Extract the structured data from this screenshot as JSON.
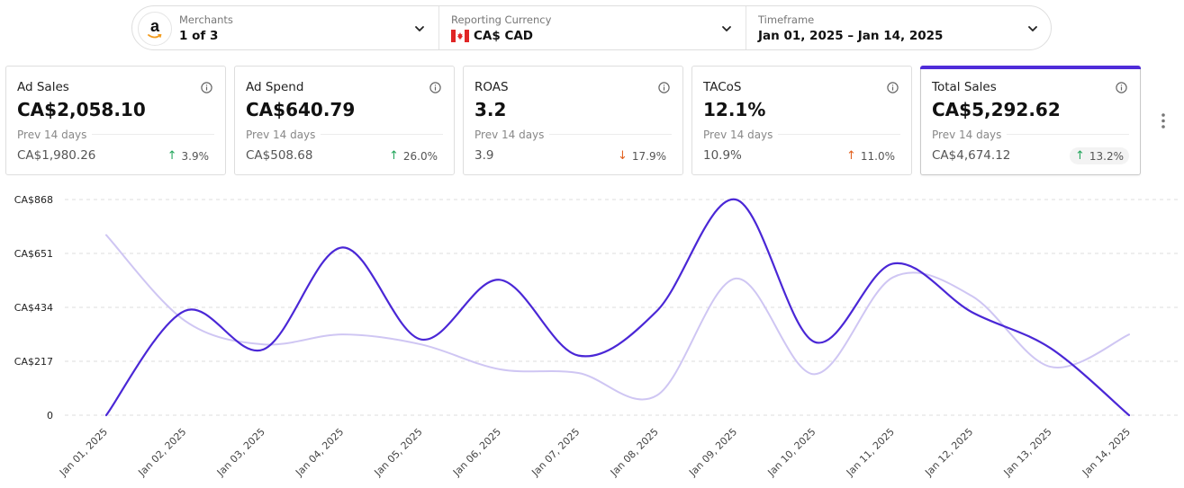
{
  "filters": {
    "merchants": {
      "label": "Merchants",
      "value": "1 of 3",
      "logo": "amazon-logo",
      "icon": "chevron-down-icon"
    },
    "currency": {
      "label": "Reporting Currency",
      "value": "CA$ CAD",
      "flag": "canada-flag",
      "icon": "chevron-down-icon"
    },
    "timeframe": {
      "label": "Timeframe",
      "value": "Jan 01, 2025 – Jan 14, 2025",
      "icon": "chevron-down-icon"
    }
  },
  "cards": [
    {
      "title": "Ad Sales",
      "value": "CA$2,058.10",
      "prev_label": "Prev 14 days",
      "prev_value": "CA$1,980.26",
      "change": "3.9%",
      "direction": "up"
    },
    {
      "title": "Ad Spend",
      "value": "CA$640.79",
      "prev_label": "Prev 14 days",
      "prev_value": "CA$508.68",
      "change": "26.0%",
      "direction": "up"
    },
    {
      "title": "ROAS",
      "value": "3.2",
      "prev_label": "Prev 14 days",
      "prev_value": "3.9",
      "change": "17.9%",
      "direction": "down"
    },
    {
      "title": "TACoS",
      "value": "12.1%",
      "prev_label": "Prev 14 days",
      "prev_value": "10.9%",
      "change": "11.0%",
      "direction": "up-warning"
    },
    {
      "title": "Total Sales",
      "value": "CA$5,292.62",
      "prev_label": "Prev 14 days",
      "prev_value": "CA$4,674.12",
      "change": "13.2%",
      "direction": "up",
      "selected": true
    }
  ],
  "colors": {
    "accent": "#4f2cd9",
    "series_current": "#4a27d6",
    "series_previous": "#cfc6f3",
    "up": "#22a55b",
    "down": "#e2611f"
  },
  "chart_data": {
    "type": "line",
    "x": [
      "Jan 01, 2025",
      "Jan 02, 2025",
      "Jan 03, 2025",
      "Jan 04, 2025",
      "Jan 05, 2025",
      "Jan 06, 2025",
      "Jan 07, 2025",
      "Jan 08, 2025",
      "Jan 09, 2025",
      "Jan 10, 2025",
      "Jan 11, 2025",
      "Jan 12, 2025",
      "Jan 13, 2025",
      "Jan 14, 2025"
    ],
    "y_ticks": [
      "0",
      "CA$217",
      "CA$434",
      "CA$651",
      "CA$868"
    ],
    "ylim": [
      0,
      868
    ],
    "grid": true,
    "series": [
      {
        "values": [
          0,
          420,
          265,
          675,
          305,
          545,
          240,
          420,
          868,
          295,
          610,
          415,
          270,
          0
        ]
      },
      {
        "values": [
          725,
          380,
          285,
          325,
          285,
          185,
          170,
          80,
          550,
          165,
          555,
          480,
          195,
          325
        ]
      }
    ]
  }
}
